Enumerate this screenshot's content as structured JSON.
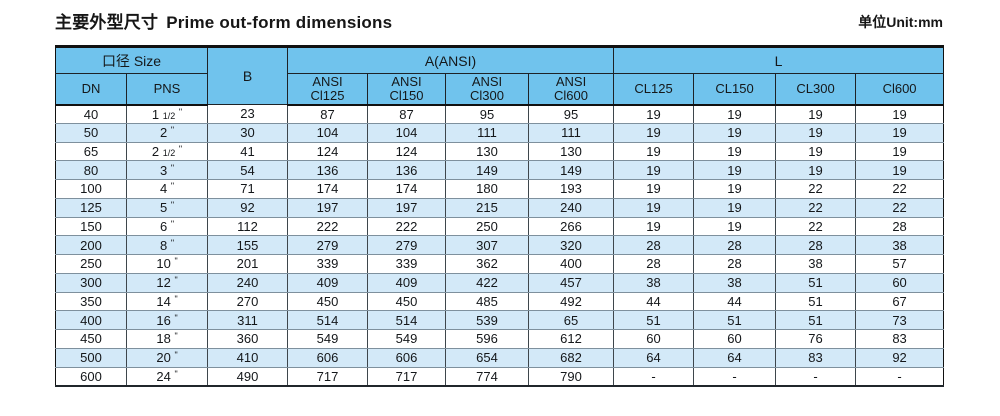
{
  "page": {
    "title_zh": "主要外型尺寸",
    "title_en": "Prime out-form dimensions",
    "unit_label": "单位Unit:mm"
  },
  "colors": {
    "header_bg": "#70c3ed",
    "row_alt_bg": "#d3e9f8",
    "frame_border": "#111111"
  },
  "table": {
    "header": {
      "size_group": "口径 Size",
      "dn": "DN",
      "pns": "PNS",
      "b": "B",
      "a_group": "A(ANSI)",
      "a_cols": [
        {
          "line1": "ANSI",
          "line2": "Cl125"
        },
        {
          "line1": "ANSI",
          "line2": "Cl150"
        },
        {
          "line1": "ANSI",
          "line2": "Cl300"
        },
        {
          "line1": "ANSI",
          "line2": "Cl600"
        }
      ],
      "l_group": "L",
      "l_cols": [
        "CL125",
        "CL150",
        "CL300",
        "Cl600"
      ]
    },
    "rows": [
      {
        "dn": "40",
        "pns_num": "1",
        "pns_frac": "1/2",
        "b": "23",
        "a": [
          "87",
          "87",
          "95",
          "95"
        ],
        "l": [
          "19",
          "19",
          "19",
          "19"
        ]
      },
      {
        "dn": "50",
        "pns_num": "2",
        "pns_frac": "",
        "b": "30",
        "a": [
          "104",
          "104",
          "111",
          "111"
        ],
        "l": [
          "19",
          "19",
          "19",
          "19"
        ]
      },
      {
        "dn": "65",
        "pns_num": "2",
        "pns_frac": "1/2",
        "b": "41",
        "a": [
          "124",
          "124",
          "130",
          "130"
        ],
        "l": [
          "19",
          "19",
          "19",
          "19"
        ]
      },
      {
        "dn": "80",
        "pns_num": "3",
        "pns_frac": "",
        "b": "54",
        "a": [
          "136",
          "136",
          "149",
          "149"
        ],
        "l": [
          "19",
          "19",
          "19",
          "19"
        ]
      },
      {
        "dn": "100",
        "pns_num": "4",
        "pns_frac": "",
        "b": "71",
        "a": [
          "174",
          "174",
          "180",
          "193"
        ],
        "l": [
          "19",
          "19",
          "22",
          "22"
        ]
      },
      {
        "dn": "125",
        "pns_num": "5",
        "pns_frac": "",
        "b": "92",
        "a": [
          "197",
          "197",
          "215",
          "240"
        ],
        "l": [
          "19",
          "19",
          "22",
          "22"
        ]
      },
      {
        "dn": "150",
        "pns_num": "6",
        "pns_frac": "",
        "b": "112",
        "a": [
          "222",
          "222",
          "250",
          "266"
        ],
        "l": [
          "19",
          "19",
          "22",
          "28"
        ]
      },
      {
        "dn": "200",
        "pns_num": "8",
        "pns_frac": "",
        "b": "155",
        "a": [
          "279",
          "279",
          "307",
          "320"
        ],
        "l": [
          "28",
          "28",
          "28",
          "38"
        ]
      },
      {
        "dn": "250",
        "pns_num": "10",
        "pns_frac": "",
        "b": "201",
        "a": [
          "339",
          "339",
          "362",
          "400"
        ],
        "l": [
          "28",
          "28",
          "38",
          "57"
        ]
      },
      {
        "dn": "300",
        "pns_num": "12",
        "pns_frac": "",
        "b": "240",
        "a": [
          "409",
          "409",
          "422",
          "457"
        ],
        "l": [
          "38",
          "38",
          "51",
          "60"
        ]
      },
      {
        "dn": "350",
        "pns_num": "14",
        "pns_frac": "",
        "b": "270",
        "a": [
          "450",
          "450",
          "485",
          "492"
        ],
        "l": [
          "44",
          "44",
          "51",
          "67"
        ]
      },
      {
        "dn": "400",
        "pns_num": "16",
        "pns_frac": "",
        "b": "311",
        "a": [
          "514",
          "514",
          "539",
          "65"
        ],
        "l": [
          "51",
          "51",
          "51",
          "73"
        ]
      },
      {
        "dn": "450",
        "pns_num": "18",
        "pns_frac": "",
        "b": "360",
        "a": [
          "549",
          "549",
          "596",
          "612"
        ],
        "l": [
          "60",
          "60",
          "76",
          "83"
        ]
      },
      {
        "dn": "500",
        "pns_num": "20",
        "pns_frac": "",
        "b": "410",
        "a": [
          "606",
          "606",
          "654",
          "682"
        ],
        "l": [
          "64",
          "64",
          "83",
          "92"
        ]
      },
      {
        "dn": "600",
        "pns_num": "24",
        "pns_frac": "",
        "b": "490",
        "a": [
          "717",
          "717",
          "774",
          "790"
        ],
        "l": [
          "-",
          "-",
          "-",
          "-"
        ]
      }
    ]
  }
}
